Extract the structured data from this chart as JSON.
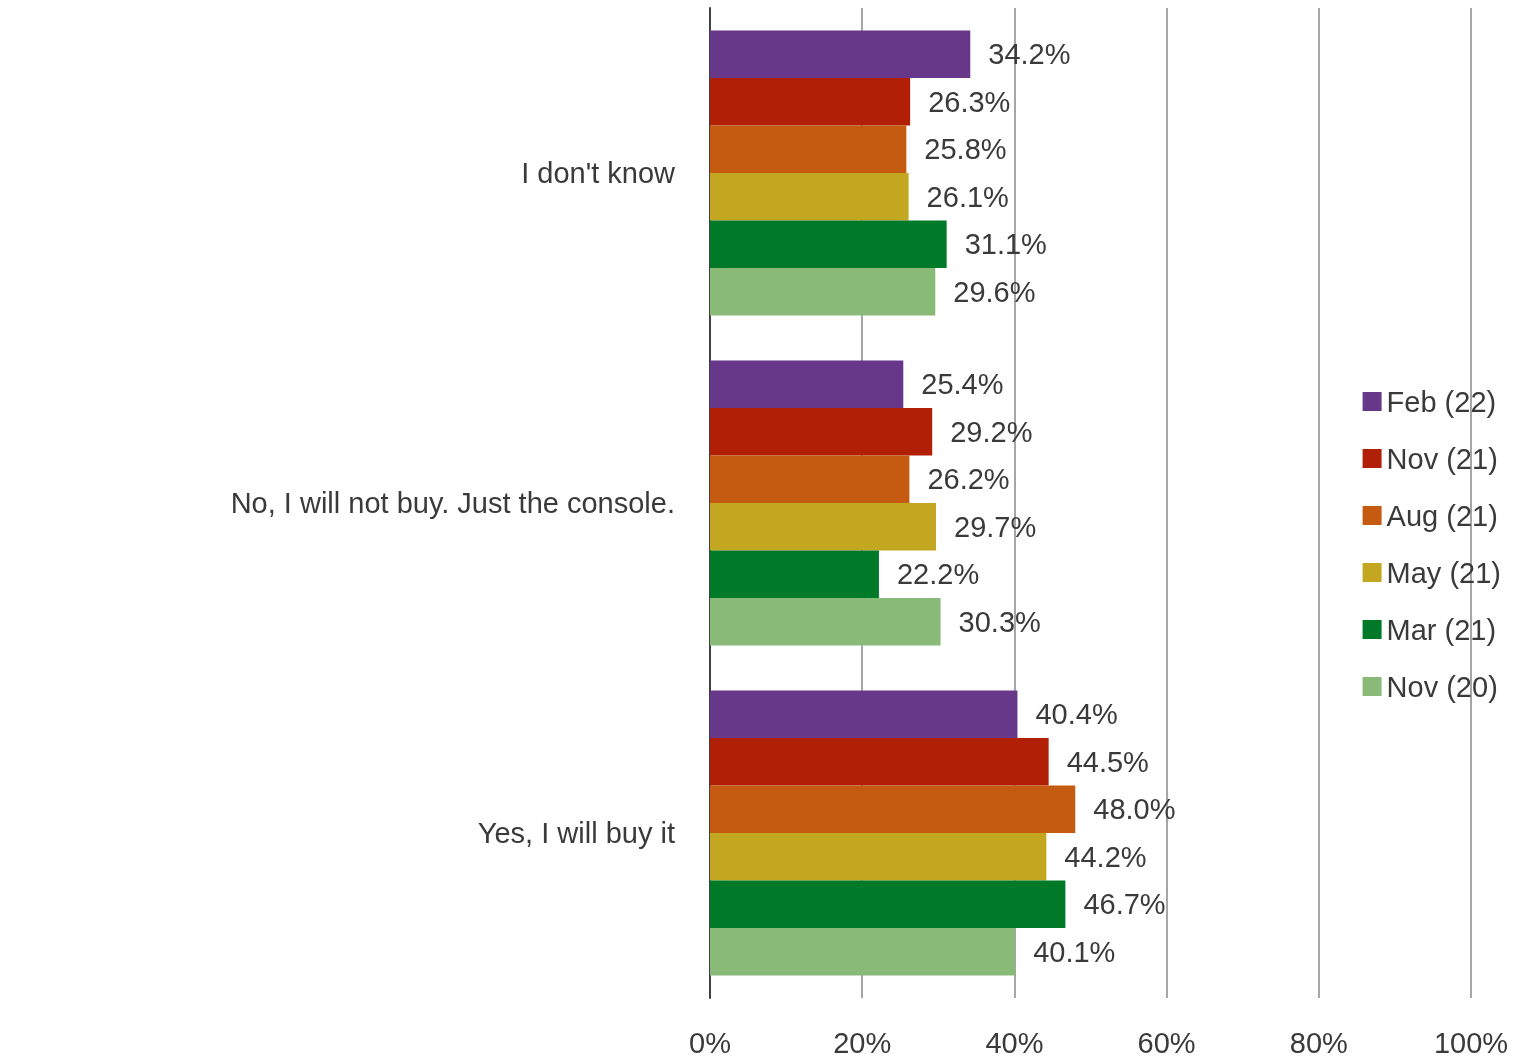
{
  "chart_data": {
    "type": "bar",
    "orientation": "horizontal",
    "categories": [
      "I don't know",
      "No, I will not buy. Just the console.",
      "Yes, I will buy it"
    ],
    "series": [
      {
        "name": "Feb (22)",
        "color": "#67378a",
        "values": [
          34.2,
          25.4,
          40.4
        ],
        "value_labels": [
          "34.2%",
          "25.4%",
          "40.4%"
        ]
      },
      {
        "name": "Nov (21)",
        "color": "#b01f06",
        "values": [
          26.3,
          29.2,
          44.5
        ],
        "value_labels": [
          "26.3%",
          "29.2%",
          "44.5%"
        ]
      },
      {
        "name": "Aug (21)",
        "color": "#c55b10",
        "values": [
          25.8,
          26.2,
          48.0
        ],
        "value_labels": [
          "25.8%",
          "26.2%",
          "48.0%"
        ]
      },
      {
        "name": "May (21)",
        "color": "#c4a720",
        "values": [
          26.1,
          29.7,
          44.2
        ],
        "value_labels": [
          "26.1%",
          "29.7%",
          "44.2%"
        ]
      },
      {
        "name": "Mar (21)",
        "color": "#007a29",
        "values": [
          31.1,
          22.2,
          46.7
        ],
        "value_labels": [
          "31.1%",
          "22.2%",
          "46.7%"
        ]
      },
      {
        "name": "Nov (20)",
        "color": "#8aba78",
        "values": [
          29.6,
          30.3,
          40.1
        ],
        "value_labels": [
          "29.6%",
          "30.3%",
          "40.1%"
        ]
      }
    ],
    "xlim": [
      0,
      100
    ],
    "xticks": [
      {
        "value": 0,
        "label": "0%"
      },
      {
        "value": 20,
        "label": "20%"
      },
      {
        "value": 40,
        "label": "40%"
      },
      {
        "value": 60,
        "label": "60%"
      },
      {
        "value": 80,
        "label": "80%"
      },
      {
        "value": 100,
        "label": "100%"
      }
    ],
    "grid": "x",
    "legend": "right"
  }
}
